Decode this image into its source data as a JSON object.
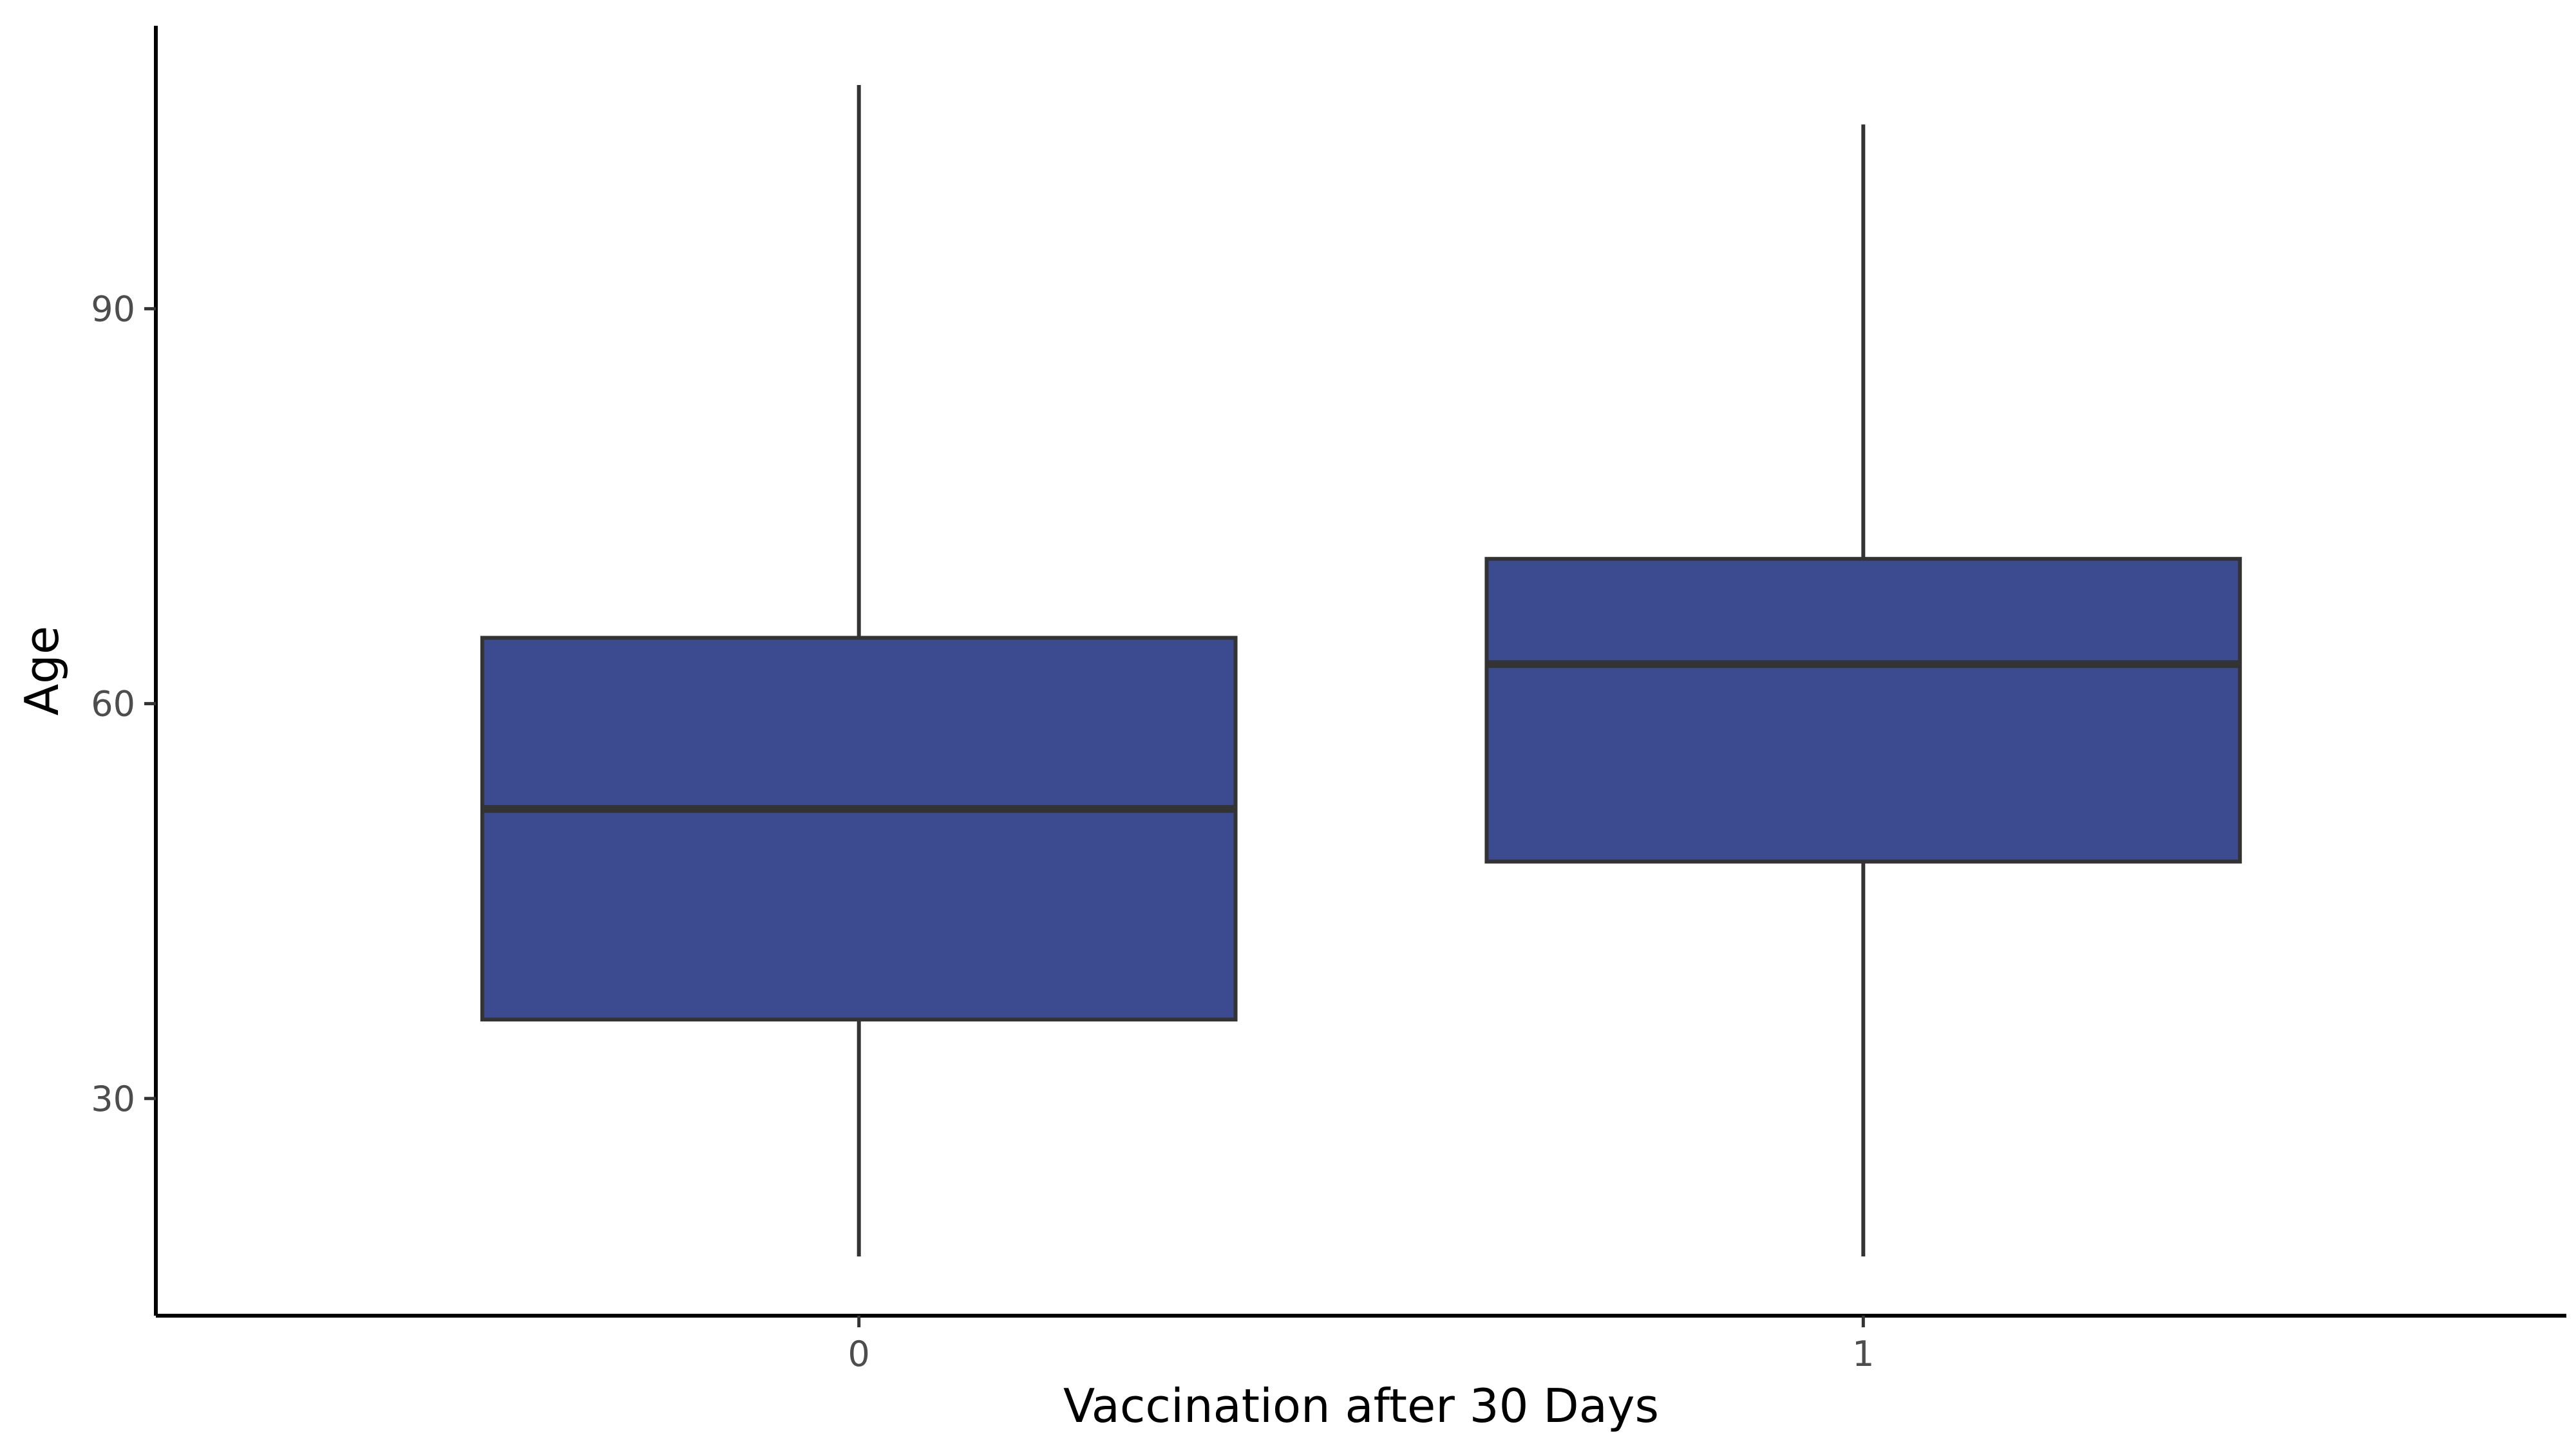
{
  "chart_data": {
    "type": "boxplot",
    "title": "",
    "xlabel": "Vaccination after 30 Days",
    "ylabel": "Age",
    "categories": [
      "0",
      "1"
    ],
    "boxes": [
      {
        "category": "0",
        "whisker_low": 18,
        "q1": 36,
        "median": 52,
        "q3": 65,
        "whisker_high": 107
      },
      {
        "category": "1",
        "whisker_low": 18,
        "q1": 48,
        "median": 63,
        "q3": 71,
        "whisker_high": 104
      }
    ],
    "yticks": [
      30,
      60,
      90
    ],
    "ylim": [
      13.5,
      111.5
    ],
    "grid": false,
    "legend": "none",
    "box_fill": "#3c4a8f",
    "line_color": "#333333",
    "axis_color": "#000000"
  }
}
